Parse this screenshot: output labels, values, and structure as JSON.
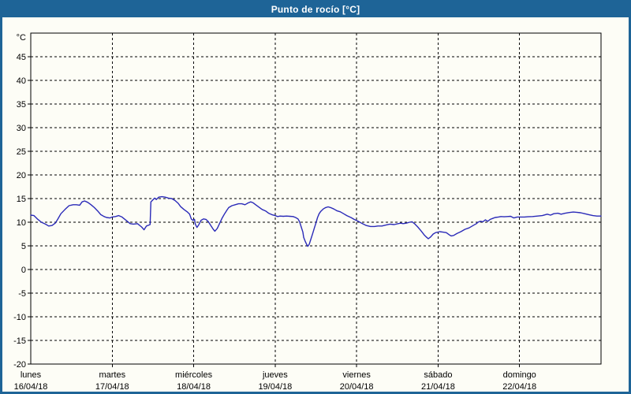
{
  "window": {
    "title": "Punto de rocío [°C]"
  },
  "colors": {
    "frame_blue": "#1e6497",
    "title_text": "#ffffff",
    "background": "#fdfdf6",
    "grid": "#000000",
    "axis_text": "#000000",
    "line": "#2a2ab8"
  },
  "chart_data": {
    "type": "line",
    "title": "Punto de rocío [°C]",
    "ylabel": "°C",
    "ylim": [
      -20,
      50
    ],
    "y_ticks": [
      45,
      40,
      35,
      30,
      25,
      20,
      15,
      10,
      5,
      0,
      -5,
      -10,
      -15,
      -20
    ],
    "y_tick_step": 5,
    "grid": "dashed",
    "legend": "none",
    "x_unit": "days since lunes 16/04/18 00:00",
    "x_days": [
      {
        "name": "lunes",
        "date": "16/04/18"
      },
      {
        "name": "martes",
        "date": "17/04/18"
      },
      {
        "name": "miércoles",
        "date": "18/04/18"
      },
      {
        "name": "jueves",
        "date": "19/04/18"
      },
      {
        "name": "viernes",
        "date": "20/04/18"
      },
      {
        "name": "sábado",
        "date": "21/04/18"
      },
      {
        "name": "domingo",
        "date": "22/04/18"
      }
    ],
    "series": [
      {
        "name": "Punto de rocío",
        "color": "#2a2ab8",
        "points": [
          [
            0.0,
            11.5
          ],
          [
            0.04,
            11.4
          ],
          [
            0.08,
            10.7
          ],
          [
            0.13,
            10.0
          ],
          [
            0.18,
            9.6
          ],
          [
            0.22,
            9.2
          ],
          [
            0.26,
            9.3
          ],
          [
            0.3,
            9.8
          ],
          [
            0.33,
            10.6
          ],
          [
            0.37,
            11.8
          ],
          [
            0.42,
            12.7
          ],
          [
            0.47,
            13.5
          ],
          [
            0.52,
            13.7
          ],
          [
            0.56,
            13.7
          ],
          [
            0.6,
            13.6
          ],
          [
            0.63,
            14.3
          ],
          [
            0.66,
            14.5
          ],
          [
            0.7,
            14.2
          ],
          [
            0.74,
            13.7
          ],
          [
            0.78,
            13.1
          ],
          [
            0.82,
            12.4
          ],
          [
            0.86,
            11.6
          ],
          [
            0.9,
            11.2
          ],
          [
            0.93,
            11.0
          ],
          [
            0.97,
            10.9
          ],
          [
            1.0,
            11.1
          ],
          [
            1.04,
            11.2
          ],
          [
            1.08,
            11.4
          ],
          [
            1.12,
            11.1
          ],
          [
            1.17,
            10.4
          ],
          [
            1.22,
            9.7
          ],
          [
            1.26,
            9.6
          ],
          [
            1.31,
            9.7
          ],
          [
            1.36,
            9.0
          ],
          [
            1.39,
            8.4
          ],
          [
            1.42,
            9.2
          ],
          [
            1.45,
            9.4
          ],
          [
            1.465,
            9.5
          ],
          [
            1.475,
            14.3
          ],
          [
            1.52,
            15.1
          ],
          [
            1.54,
            14.8
          ],
          [
            1.57,
            15.3
          ],
          [
            1.61,
            15.4
          ],
          [
            1.65,
            15.3
          ],
          [
            1.69,
            15.1
          ],
          [
            1.73,
            15.0
          ],
          [
            1.77,
            14.6
          ],
          [
            1.81,
            14.0
          ],
          [
            1.84,
            13.3
          ],
          [
            1.88,
            12.7
          ],
          [
            1.92,
            12.2
          ],
          [
            1.95,
            11.7
          ],
          [
            1.97,
            10.7
          ],
          [
            1.99,
            10.4
          ],
          [
            2.01,
            10.6
          ],
          [
            2.02,
            9.6
          ],
          [
            2.04,
            8.9
          ],
          [
            2.06,
            9.4
          ],
          [
            2.09,
            10.4
          ],
          [
            2.12,
            10.7
          ],
          [
            2.15,
            10.6
          ],
          [
            2.18,
            10.1
          ],
          [
            2.21,
            9.3
          ],
          [
            2.24,
            8.5
          ],
          [
            2.26,
            8.1
          ],
          [
            2.29,
            8.7
          ],
          [
            2.32,
            9.8
          ],
          [
            2.35,
            10.9
          ],
          [
            2.38,
            11.8
          ],
          [
            2.41,
            12.6
          ],
          [
            2.43,
            13.1
          ],
          [
            2.47,
            13.5
          ],
          [
            2.51,
            13.7
          ],
          [
            2.55,
            13.9
          ],
          [
            2.59,
            13.9
          ],
          [
            2.63,
            13.7
          ],
          [
            2.67,
            14.1
          ],
          [
            2.7,
            14.3
          ],
          [
            2.73,
            14.1
          ],
          [
            2.76,
            13.7
          ],
          [
            2.8,
            13.2
          ],
          [
            2.84,
            12.7
          ],
          [
            2.88,
            12.4
          ],
          [
            2.92,
            11.9
          ],
          [
            2.96,
            11.6
          ],
          [
            3.0,
            11.4
          ],
          [
            3.03,
            11.2
          ],
          [
            3.06,
            11.3
          ],
          [
            3.1,
            11.25
          ],
          [
            3.14,
            11.3
          ],
          [
            3.18,
            11.25
          ],
          [
            3.22,
            11.2
          ],
          [
            3.25,
            11.0
          ],
          [
            3.28,
            10.7
          ],
          [
            3.3,
            10.1
          ],
          [
            3.32,
            9.0
          ],
          [
            3.34,
            7.9
          ],
          [
            3.35,
            6.8
          ],
          [
            3.37,
            5.9
          ],
          [
            3.39,
            5.2
          ],
          [
            3.4,
            4.9
          ],
          [
            3.42,
            5.4
          ],
          [
            3.44,
            6.5
          ],
          [
            3.46,
            7.6
          ],
          [
            3.48,
            8.7
          ],
          [
            3.5,
            9.8
          ],
          [
            3.52,
            11.0
          ],
          [
            3.54,
            11.8
          ],
          [
            3.56,
            12.3
          ],
          [
            3.59,
            12.8
          ],
          [
            3.62,
            13.1
          ],
          [
            3.65,
            13.25
          ],
          [
            3.68,
            13.1
          ],
          [
            3.72,
            12.8
          ],
          [
            3.76,
            12.4
          ],
          [
            3.8,
            12.2
          ],
          [
            3.84,
            11.8
          ],
          [
            3.88,
            11.4
          ],
          [
            3.93,
            11.0
          ],
          [
            3.97,
            10.6
          ],
          [
            4.03,
            10.1
          ],
          [
            4.07,
            9.7
          ],
          [
            4.12,
            9.3
          ],
          [
            4.17,
            9.1
          ],
          [
            4.22,
            9.1
          ],
          [
            4.26,
            9.2
          ],
          [
            4.31,
            9.2
          ],
          [
            4.36,
            9.4
          ],
          [
            4.41,
            9.6
          ],
          [
            4.46,
            9.5
          ],
          [
            4.51,
            9.7
          ],
          [
            4.54,
            9.8
          ],
          [
            4.57,
            9.7
          ],
          [
            4.61,
            9.8
          ],
          [
            4.65,
            10.0
          ],
          [
            4.68,
            10.1
          ],
          [
            4.71,
            9.7
          ],
          [
            4.75,
            9.0
          ],
          [
            4.79,
            8.2
          ],
          [
            4.83,
            7.3
          ],
          [
            4.86,
            6.8
          ],
          [
            4.88,
            6.5
          ],
          [
            4.91,
            6.9
          ],
          [
            4.94,
            7.5
          ],
          [
            4.97,
            7.8
          ],
          [
            5.02,
            8.0
          ],
          [
            5.06,
            7.9
          ],
          [
            5.1,
            7.8
          ],
          [
            5.14,
            7.3
          ],
          [
            5.16,
            7.1
          ],
          [
            5.19,
            7.2
          ],
          [
            5.23,
            7.6
          ],
          [
            5.28,
            8.0
          ],
          [
            5.33,
            8.5
          ],
          [
            5.38,
            8.8
          ],
          [
            5.43,
            9.3
          ],
          [
            5.47,
            9.7
          ],
          [
            5.49,
            10.0
          ],
          [
            5.52,
            10.2
          ],
          [
            5.55,
            10.1
          ],
          [
            5.58,
            10.5
          ],
          [
            5.61,
            10.2
          ],
          [
            5.64,
            10.6
          ],
          [
            5.67,
            10.8
          ],
          [
            5.7,
            11.0
          ],
          [
            5.74,
            11.1
          ],
          [
            5.77,
            11.2
          ],
          [
            5.81,
            11.15
          ],
          [
            5.85,
            11.2
          ],
          [
            5.89,
            11.25
          ],
          [
            5.93,
            10.9
          ],
          [
            5.97,
            11.1
          ],
          [
            6.01,
            11.1
          ],
          [
            6.06,
            11.1
          ],
          [
            6.1,
            11.15
          ],
          [
            6.16,
            11.2
          ],
          [
            6.22,
            11.3
          ],
          [
            6.28,
            11.4
          ],
          [
            6.34,
            11.7
          ],
          [
            6.38,
            11.5
          ],
          [
            6.42,
            11.8
          ],
          [
            6.47,
            11.9
          ],
          [
            6.51,
            11.7
          ],
          [
            6.56,
            11.9
          ],
          [
            6.61,
            12.05
          ],
          [
            6.66,
            12.15
          ],
          [
            6.7,
            12.1
          ],
          [
            6.75,
            12.0
          ],
          [
            6.8,
            11.8
          ],
          [
            6.85,
            11.6
          ],
          [
            6.9,
            11.4
          ],
          [
            6.95,
            11.3
          ],
          [
            7.0,
            11.3
          ]
        ]
      }
    ]
  }
}
